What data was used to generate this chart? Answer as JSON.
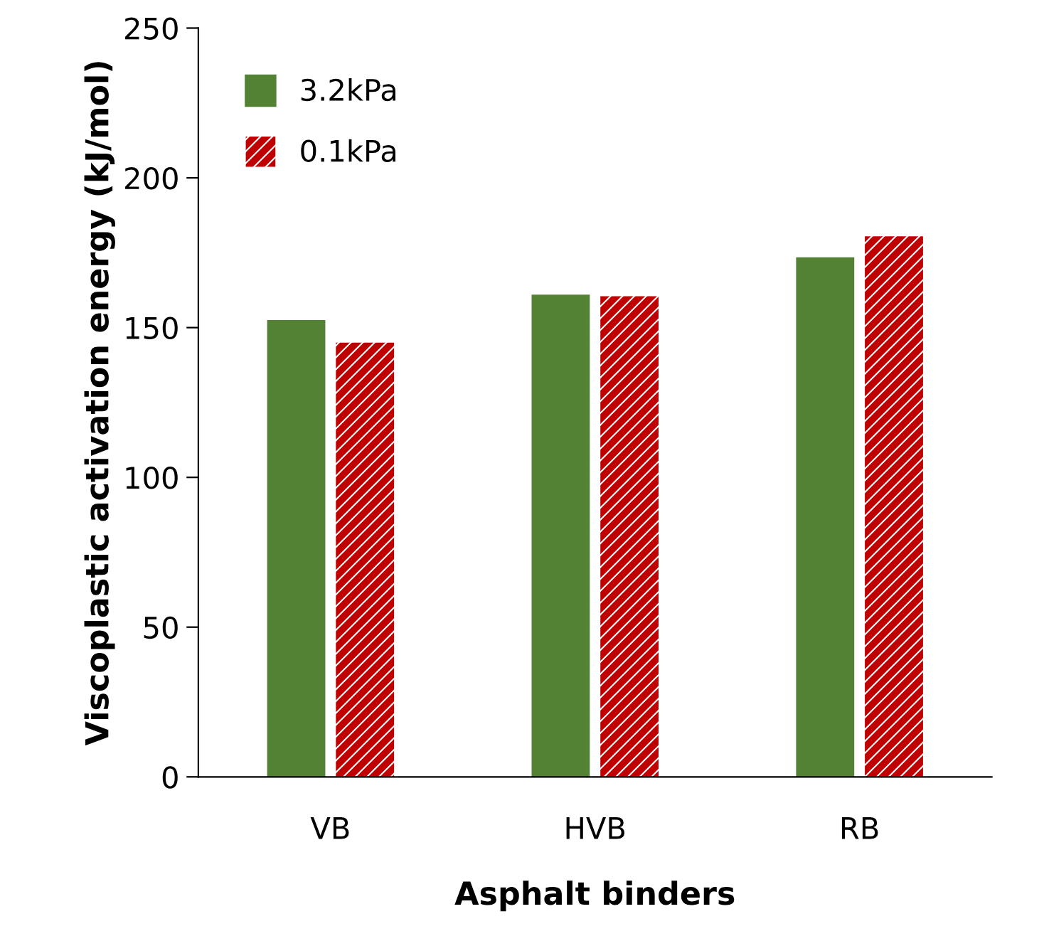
{
  "chart_data": {
    "type": "bar",
    "xlabel": "Asphalt binders",
    "ylabel": "Viscoplastic activation energy (kJ/mol)",
    "categories": [
      "VB",
      "HVB",
      "RB"
    ],
    "series": [
      {
        "name": "3.2kPa",
        "color": "#548235",
        "values": [
          152.5,
          161,
          173.5
        ]
      },
      {
        "name": "0.1kPa",
        "color": "#c00000",
        "values": [
          145,
          160.5,
          180.5
        ]
      }
    ],
    "ylim": [
      0,
      250
    ],
    "yticks": [
      0,
      50,
      100,
      150,
      200,
      250
    ],
    "grid": false,
    "legend": "top left"
  }
}
